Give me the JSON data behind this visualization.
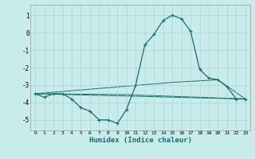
{
  "xlabel": "Humidex (Indice chaleur)",
  "ylabel": "",
  "background_color": "#c8ecec",
  "grid_color": "#aad4d4",
  "line_color": "#1a6b6b",
  "xlim": [
    -0.5,
    23.5
  ],
  "ylim": [
    -5.6,
    1.6
  ],
  "xtick_labels": [
    "0",
    "1",
    "2",
    "3",
    "4",
    "5",
    "6",
    "7",
    "8",
    "9",
    "10",
    "11",
    "12",
    "13",
    "14",
    "15",
    "16",
    "17",
    "18",
    "19",
    "20",
    "21",
    "22",
    "23"
  ],
  "ytick_values": [
    -5,
    -4,
    -3,
    -2,
    -1,
    0,
    1
  ],
  "series_main": {
    "x": [
      0,
      1,
      2,
      3,
      4,
      5,
      6,
      7,
      8,
      9,
      10,
      11,
      12,
      13,
      14,
      15,
      16,
      17,
      18,
      19,
      20,
      21,
      22,
      23
    ],
    "y": [
      -3.5,
      -3.7,
      -3.5,
      -3.5,
      -3.8,
      -4.3,
      -4.5,
      -5.0,
      -5.0,
      -5.2,
      -4.4,
      -3.0,
      -0.7,
      -0.1,
      0.7,
      1.0,
      0.8,
      0.1,
      -2.1,
      -2.6,
      -2.7,
      -3.1,
      -3.8,
      -3.8
    ]
  },
  "series_line1": {
    "x": [
      0,
      23
    ],
    "y": [
      -3.5,
      -3.8
    ]
  },
  "series_line2": {
    "x": [
      0,
      10,
      23
    ],
    "y": [
      -3.5,
      -3.55,
      -3.8
    ]
  },
  "series_line3": {
    "x": [
      0,
      15,
      20,
      23
    ],
    "y": [
      -3.5,
      -2.85,
      -2.7,
      -3.8
    ]
  }
}
